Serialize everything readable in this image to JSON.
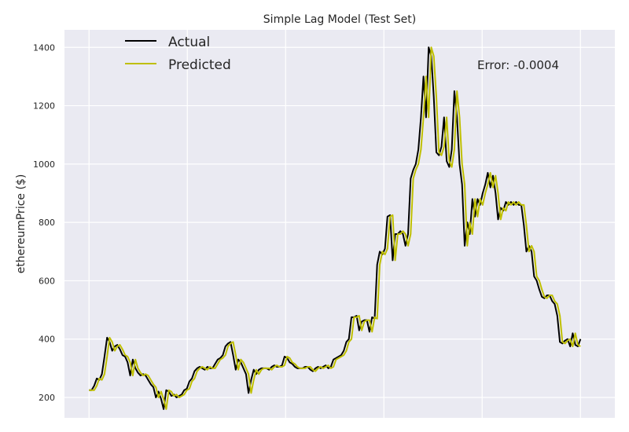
{
  "chart_data": {
    "type": "line",
    "title": "Simple Lag Model (Test Set)",
    "xlabel": "",
    "ylabel": "ethereumPrice ($)",
    "ylim": [
      130,
      1460
    ],
    "xlim": [
      -5,
      107
    ],
    "yticks": [
      200,
      400,
      600,
      800,
      1000,
      1200,
      1400
    ],
    "grid": true,
    "legend_position": "top-left",
    "annotation": "Error: -0.0004",
    "series": [
      {
        "name": "Actual",
        "color": "#000000",
        "values": [
          225,
          225,
          240,
          265,
          260,
          280,
          340,
          405,
          390,
          360,
          375,
          380,
          365,
          345,
          340,
          320,
          275,
          330,
          300,
          285,
          275,
          280,
          275,
          260,
          245,
          235,
          200,
          220,
          195,
          160,
          225,
          220,
          205,
          210,
          200,
          205,
          210,
          225,
          230,
          255,
          265,
          290,
          300,
          305,
          300,
          295,
          305,
          300,
          300,
          315,
          330,
          335,
          345,
          375,
          385,
          390,
          345,
          295,
          330,
          320,
          300,
          280,
          215,
          260,
          295,
          280,
          295,
          300,
          300,
          300,
          295,
          305,
          310,
          305,
          305,
          310,
          340,
          335,
          320,
          315,
          305,
          300,
          300,
          300,
          305,
          305,
          295,
          290,
          300,
          305,
          300,
          305,
          310,
          300,
          305,
          330,
          335,
          340,
          345,
          360,
          390,
          400,
          475,
          475,
          480,
          430,
          460,
          465,
          465,
          425,
          475,
          470,
          655,
          700,
          690,
          710,
          820,
          825,
          670,
          760,
          760,
          770,
          760,
          720,
          760,
          950,
          980,
          1000,
          1050,
          1160,
          1300,
          1160,
          1400,
          1370,
          1230,
          1040,
          1030,
          1060,
          1160,
          1010,
          990,
          1050,
          1250,
          1160,
          1000,
          930,
          720,
          800,
          760,
          880,
          820,
          880,
          860,
          900,
          930,
          970,
          920,
          960,
          900,
          810,
          850,
          840,
          870,
          860,
          870,
          860,
          870,
          860,
          860,
          790,
          700,
          720,
          700,
          615,
          600,
          570,
          545,
          540,
          550,
          550,
          530,
          520,
          480,
          390,
          385,
          395,
          400,
          375,
          420,
          380,
          375,
          400
        ]
      },
      {
        "name": "Predicted",
        "color": "#bfbf00",
        "values": [
          225,
          225,
          225,
          240,
          265,
          260,
          280,
          340,
          405,
          390,
          360,
          375,
          380,
          365,
          345,
          340,
          320,
          275,
          330,
          300,
          285,
          275,
          280,
          275,
          260,
          245,
          235,
          200,
          220,
          195,
          160,
          225,
          220,
          205,
          210,
          200,
          205,
          210,
          225,
          230,
          255,
          265,
          290,
          300,
          305,
          300,
          295,
          305,
          300,
          300,
          315,
          330,
          335,
          345,
          375,
          385,
          390,
          345,
          295,
          330,
          320,
          300,
          280,
          215,
          260,
          295,
          280,
          295,
          300,
          300,
          300,
          295,
          305,
          310,
          305,
          305,
          310,
          340,
          335,
          320,
          315,
          305,
          300,
          300,
          300,
          305,
          305,
          295,
          290,
          300,
          305,
          300,
          305,
          310,
          300,
          305,
          330,
          335,
          340,
          345,
          360,
          390,
          400,
          475,
          475,
          480,
          430,
          460,
          465,
          465,
          425,
          475,
          470,
          655,
          700,
          690,
          710,
          820,
          825,
          670,
          760,
          760,
          770,
          760,
          720,
          760,
          950,
          980,
          1000,
          1050,
          1160,
          1300,
          1160,
          1400,
          1370,
          1230,
          1040,
          1030,
          1060,
          1160,
          1010,
          990,
          1050,
          1250,
          1160,
          1000,
          930,
          720,
          800,
          760,
          880,
          820,
          880,
          860,
          900,
          930,
          970,
          920,
          960,
          900,
          810,
          850,
          840,
          870,
          860,
          870,
          860,
          870,
          860,
          860,
          790,
          700,
          720,
          700,
          615,
          600,
          570,
          545,
          540,
          550,
          550,
          530,
          520,
          480,
          390,
          385,
          395,
          400,
          375,
          420,
          380,
          375
        ]
      }
    ]
  }
}
